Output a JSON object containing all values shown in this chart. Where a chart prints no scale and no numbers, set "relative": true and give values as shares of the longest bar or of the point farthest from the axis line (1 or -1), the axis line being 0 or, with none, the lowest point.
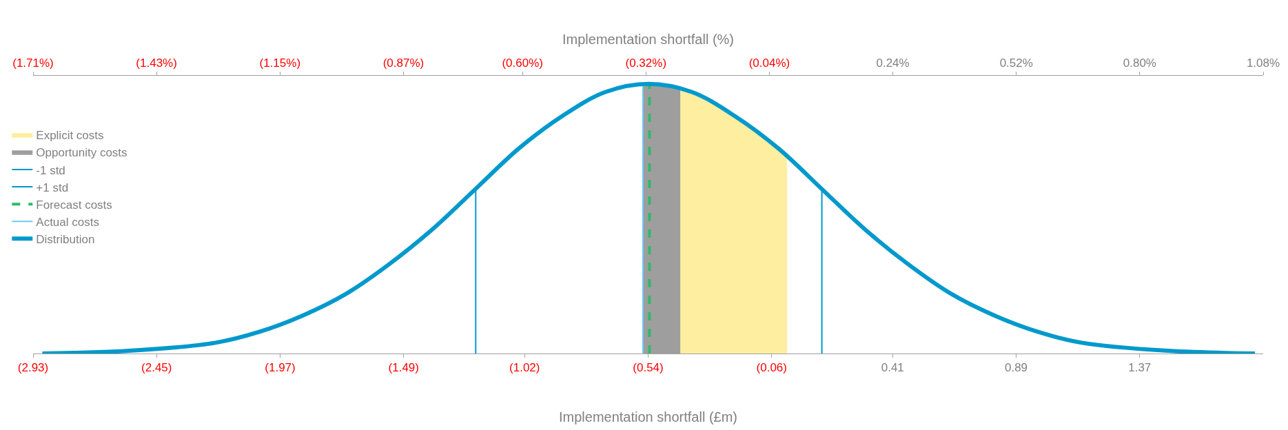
{
  "chart_data": {
    "type": "line",
    "relative": true,
    "xlabel": "Implementation shortfall (£m)",
    "x2label": "Implementation shortfall (%)",
    "xlim": [
      -2.93,
      1.85
    ],
    "xticks": [
      {
        "value": -2.93,
        "label": "(2.93)"
      },
      {
        "value": -2.45,
        "label": "(2.45)"
      },
      {
        "value": -1.97,
        "label": "(1.97)"
      },
      {
        "value": -1.49,
        "label": "(1.49)"
      },
      {
        "value": -1.02,
        "label": "(1.02)"
      },
      {
        "value": -0.54,
        "label": "(0.54)"
      },
      {
        "value": -0.06,
        "label": "(0.06)"
      },
      0.41,
      0.89,
      1.37
    ],
    "x2lim": [
      -1.71,
      1.08
    ],
    "x2ticks": [
      {
        "value": -1.71,
        "label": "(1.71%)"
      },
      {
        "value": -1.43,
        "label": "(1.43%)"
      },
      {
        "value": -1.15,
        "label": "(1.15%)"
      },
      {
        "value": -0.87,
        "label": "(0.87%)"
      },
      {
        "value": -0.6,
        "label": "(0.60%)"
      },
      {
        "value": -0.32,
        "label": "(0.32%)"
      },
      {
        "value": -0.04,
        "label": "(0.04%)"
      },
      {
        "value": 0.24,
        "label": "0.24%"
      },
      {
        "value": 0.52,
        "label": "0.52%"
      },
      {
        "value": 0.8,
        "label": "0.80%"
      },
      {
        "value": 1.08,
        "label": "1.08%"
      }
    ],
    "legend": "left",
    "grid": false,
    "series": [
      {
        "name": "Explicit costs",
        "type": "area",
        "color": "#fdeea0",
        "x": [
          -0.415,
          -0.3,
          -0.2,
          -0.1,
          0
        ],
        "values": [
          0.98,
          0.94,
          0.88,
          0.81,
          0.73
        ]
      },
      {
        "name": "Opportunity costs",
        "type": "area",
        "color": "#9e9e9e",
        "x": [
          -0.56,
          -0.5,
          -0.415
        ],
        "values": [
          1,
          1,
          0.98
        ]
      },
      {
        "name": "-1 std",
        "type": "line",
        "color": "#0099cc",
        "line_style": "solid",
        "x": [
          -1.21,
          -1.21
        ],
        "values": [
          0,
          0.61
        ]
      },
      {
        "name": "+1 std",
        "type": "line",
        "color": "#0099cc",
        "line_style": "solid",
        "x": [
          0.135,
          0.135
        ],
        "values": [
          0,
          0.61
        ]
      },
      {
        "name": "Forecast costs",
        "type": "line",
        "color": "#2dbb6a",
        "line_style": "dashed",
        "x": [
          -0.535,
          -0.535
        ],
        "values": [
          0,
          1
        ]
      },
      {
        "name": "Actual costs",
        "type": "line",
        "color": "#66ccee",
        "line_style": "solid",
        "x": [
          -0.56,
          -0.56
        ],
        "values": [
          0,
          1
        ]
      },
      {
        "name": "Distribution",
        "color": "#0099cc",
        "line_style": "solid",
        "x": [
          -2.894,
          -2.557,
          -2.221,
          -2.052,
          -1.884,
          -1.716,
          -1.548,
          -1.379,
          -1.211,
          -1.043,
          -0.875,
          -0.706,
          -0.538,
          -0.37,
          -0.202,
          -0.033,
          0.135,
          0.303,
          0.472,
          0.64,
          0.808,
          0.976,
          1.145,
          1.481,
          1.818
        ],
        "values": [
          0.0,
          0.01,
          0.04,
          0.08,
          0.14,
          0.22,
          0.33,
          0.46,
          0.61,
          0.76,
          0.88,
          0.97,
          1,
          0.97,
          0.88,
          0.76,
          0.61,
          0.46,
          0.33,
          0.22,
          0.14,
          0.08,
          0.04,
          0.01,
          0.0
        ]
      }
    ]
  }
}
